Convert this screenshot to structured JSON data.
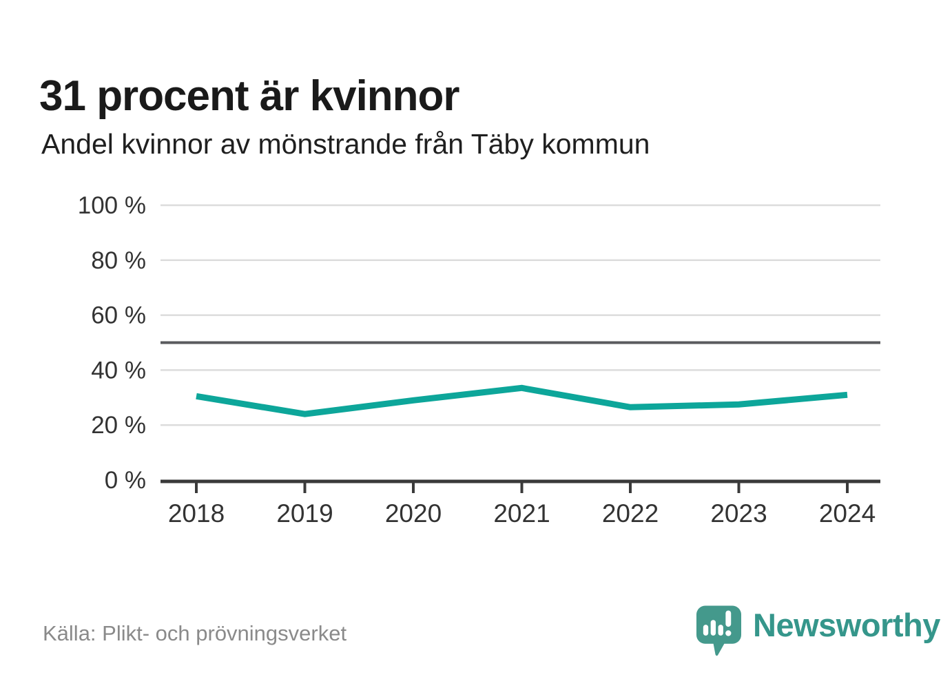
{
  "header": {
    "title": "31 procent är kvinnor",
    "subtitle": "Andel kvinnor av mönstrande från Täby kommun"
  },
  "footer": {
    "source": "Källa: Plikt- och prövningsverket",
    "brand_name": "Newsworthy"
  },
  "colors": {
    "line": "#0da69a",
    "grid": "#dcdcdc",
    "reference": "#5a5b5e",
    "axis": "#3a3a3a",
    "tick_label": "#333333",
    "title_text": "#1a1a1a",
    "source_text": "#8a8a8a",
    "brand_teal": "#35968b",
    "logo_bubble": "#44998c"
  },
  "chart_data": {
    "type": "line",
    "title": "31 procent är kvinnor",
    "subtitle": "Andel kvinnor av mönstrande från Täby kommun",
    "x": [
      2018,
      2019,
      2020,
      2021,
      2022,
      2023,
      2024
    ],
    "series": [
      {
        "name": "Andel kvinnor av mönstrande från Täby kommun",
        "values": [
          30.5,
          24,
          29,
          33.5,
          26.5,
          27.5,
          31
        ]
      }
    ],
    "unit": "%",
    "ylim": [
      0,
      100
    ],
    "yticks": [
      0,
      20,
      40,
      60,
      80,
      100
    ],
    "ytick_format": "{v} %",
    "reference_line": 50,
    "grid": "horizontal",
    "legend": "none",
    "xlabel": "",
    "ylabel": ""
  }
}
